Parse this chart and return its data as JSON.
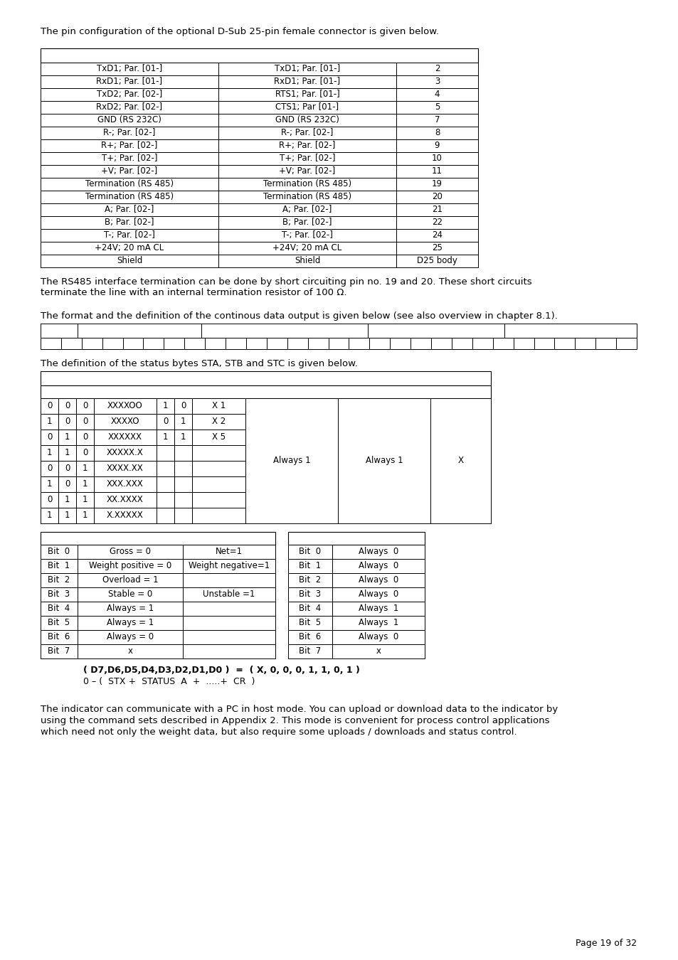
{
  "intro_text": "The pin configuration of the optional D-Sub 25-pin female connector is given below.",
  "pin_table_rows": [
    [
      "TxD1; Par. [01-]",
      "TxD1; Par. [01-]",
      "2"
    ],
    [
      "RxD1; Par. [01-]",
      "RxD1; Par. [01-]",
      "3"
    ],
    [
      "TxD2; Par. [02-]",
      "RTS1; Par. [01-]",
      "4"
    ],
    [
      "RxD2; Par. [02-]",
      "CTS1; Par [01-]",
      "5"
    ],
    [
      "GND (RS 232C)",
      "GND (RS 232C)",
      "7"
    ],
    [
      "R-; Par. [02-]",
      "R-; Par. [02-]",
      "8"
    ],
    [
      "R+; Par. [02-]",
      "R+; Par. [02-]",
      "9"
    ],
    [
      "T+; Par. [02-]",
      "T+; Par. [02-]",
      "10"
    ],
    [
      "+V; Par. [02-]",
      "+V; Par. [02-]",
      "11"
    ],
    [
      "Termination (RS 485)",
      "Termination (RS 485)",
      "19"
    ],
    [
      "Termination (RS 485)",
      "Termination (RS 485)",
      "20"
    ],
    [
      "A; Par. [02-]",
      "A; Par. [02-]",
      "21"
    ],
    [
      "B; Par. [02-]",
      "B; Par. [02-]",
      "22"
    ],
    [
      "T-; Par. [02-]",
      "T-; Par. [02-]",
      "24"
    ],
    [
      "+24V; 20 mA CL",
      "+24V; 20 mA CL",
      "25"
    ],
    [
      "Shield",
      "Shield",
      "D25 body"
    ]
  ],
  "rs485_text1": "The RS485 interface termination can be done by short circuiting pin no. 19 and 20. These short circuits",
  "rs485_text2": "terminate the line with an internal termination resistor of 100 Ω.",
  "format_text": "The format and the definition of the continous data output is given below (see also overview in chapter 8.1).",
  "status_text": "The definition of the status bytes STA, STB and STC is given below.",
  "status_table_left": [
    [
      "0",
      "0",
      "0",
      "XXXXOO",
      "1",
      "0",
      "X 1"
    ],
    [
      "1",
      "0",
      "0",
      "XXXXO",
      "0",
      "1",
      "X 2"
    ],
    [
      "0",
      "1",
      "0",
      "XXXXXX",
      "1",
      "1",
      "X 5"
    ],
    [
      "1",
      "1",
      "0",
      "XXXXX.X",
      "",
      "",
      ""
    ],
    [
      "0",
      "0",
      "1",
      "XXXX.XX",
      "",
      "",
      ""
    ],
    [
      "1",
      "0",
      "1",
      "XXX.XXX",
      "",
      "",
      ""
    ],
    [
      "0",
      "1",
      "1",
      "XX.XXXX",
      "",
      "",
      ""
    ],
    [
      "1",
      "1",
      "1",
      "X.XXXXX",
      "",
      "",
      ""
    ]
  ],
  "status_right_labels": [
    "Always 1",
    "Always 1",
    "X"
  ],
  "bit_table_left": [
    [
      "Bit  0",
      "Gross = 0",
      "Net=1"
    ],
    [
      "Bit  1",
      "Weight positive = 0",
      "Weight negative=1"
    ],
    [
      "Bit  2",
      "Overload = 1",
      ""
    ],
    [
      "Bit  3",
      "Stable = 0",
      "Unstable =1"
    ],
    [
      "Bit  4",
      "Always = 1",
      ""
    ],
    [
      "Bit  5",
      "Always = 1",
      ""
    ],
    [
      "Bit  6",
      "Always = 0",
      ""
    ],
    [
      "Bit  7",
      "x",
      ""
    ]
  ],
  "bit_table_right": [
    [
      "Bit  0",
      "Always  0"
    ],
    [
      "Bit  1",
      "Always  0"
    ],
    [
      "Bit  2",
      "Always  0"
    ],
    [
      "Bit  3",
      "Always  0"
    ],
    [
      "Bit  4",
      "Always  1"
    ],
    [
      "Bit  5",
      "Always  1"
    ],
    [
      "Bit  6",
      "Always  0"
    ],
    [
      "Bit  7",
      "x"
    ]
  ],
  "formula_line1": "( D7,D6,D5,D4,D3,D2,D1,D0 )  =  ( X, 0, 0, 0, 1, 1, 0, 1 )",
  "formula_line2": "0 – (  STX +  STATUS  A  +  .....+  CR  )",
  "host_text1": "The indicator can communicate with a PC in host mode. You can upload or download data to the indicator by",
  "host_text2": "using the command sets described in Appendix 2. This mode is convenient for process control applications",
  "host_text3": "which need not only the weight data, but also require some uploads / downloads and status control.",
  "page_number": "Page 19 of 32"
}
